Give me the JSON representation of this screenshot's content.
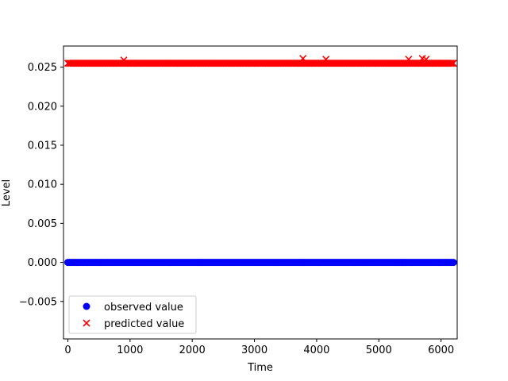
{
  "chart_data": {
    "type": "scatter",
    "title": "",
    "xlabel": "Time",
    "ylabel": "Level",
    "xlim": [
      -70,
      6260
    ],
    "ylim": [
      -0.0098,
      0.0277
    ],
    "x_ticks": [
      0,
      1000,
      2000,
      3000,
      4000,
      5000,
      6000
    ],
    "x_tick_labels": [
      "0",
      "1000",
      "2000",
      "3000",
      "4000",
      "5000",
      "6000"
    ],
    "y_ticks": [
      -0.005,
      0.0,
      0.005,
      0.01,
      0.015,
      0.02,
      0.025
    ],
    "y_tick_labels": [
      "−0.005",
      "0.000",
      "0.005",
      "0.010",
      "0.015",
      "0.020",
      "0.025"
    ],
    "grid": false,
    "legend_position": "lower-left",
    "series": [
      {
        "name": "observed value",
        "marker": "circle",
        "color": "#0000ff",
        "x_range": [
          0,
          6200
        ],
        "x_step": 20,
        "y_value": 0.0,
        "y_outliers": []
      },
      {
        "name": "predicted value",
        "marker": "x",
        "color": "#ff0000",
        "x_range": [
          0,
          6200
        ],
        "x_step": 20,
        "y_value": 0.0255,
        "y_outliers": [
          {
            "x": 3780,
            "y": 0.0261
          },
          {
            "x": 4150,
            "y": 0.026
          },
          {
            "x": 5480,
            "y": 0.026
          },
          {
            "x": 5700,
            "y": 0.0261
          },
          {
            "x": 5760,
            "y": 0.026
          },
          {
            "x": 900,
            "y": 0.0259
          }
        ]
      }
    ]
  }
}
